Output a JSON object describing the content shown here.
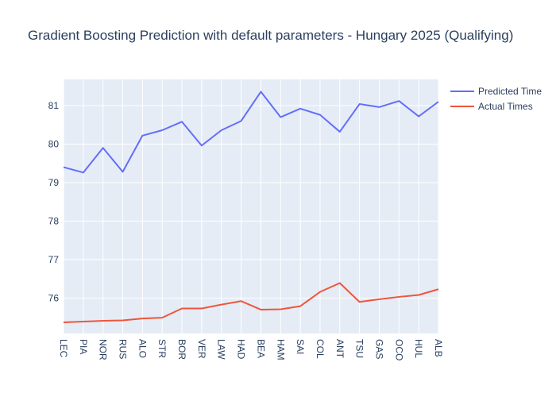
{
  "chart_data": {
    "type": "line",
    "title": "Gradient Boosting Prediction with default parameters - Hungary 2025 (Qualifying)",
    "xlabel": "",
    "ylabel": "",
    "categories": [
      "LEC",
      "PIA",
      "NOR",
      "RUS",
      "ALO",
      "STR",
      "BOR",
      "VER",
      "LAW",
      "HAD",
      "BEA",
      "HAM",
      "SAI",
      "COL",
      "ANT",
      "TSU",
      "GAS",
      "OCO",
      "HUL",
      "ALB"
    ],
    "ylim": [
      75.08,
      81.68
    ],
    "yticks": [
      76,
      77,
      78,
      79,
      80,
      81
    ],
    "grid": true,
    "legend_position": "top-right",
    "series": [
      {
        "name": "Predicted Time",
        "color": "#636efa",
        "values": [
          79.4,
          79.26,
          79.9,
          79.28,
          80.22,
          80.36,
          80.58,
          79.96,
          80.36,
          80.6,
          81.36,
          80.7,
          80.92,
          80.76,
          80.32,
          81.04,
          80.96,
          81.12,
          80.72,
          81.1
        ]
      },
      {
        "name": "Actual Times",
        "color": "#ef553b",
        "values": [
          75.37,
          75.39,
          75.41,
          75.42,
          75.47,
          75.49,
          75.73,
          75.73,
          75.83,
          75.92,
          75.7,
          75.71,
          75.79,
          76.16,
          76.39,
          75.9,
          75.97,
          76.03,
          76.08,
          76.23
        ]
      }
    ]
  },
  "colors": {
    "plot_background": "#e5ecf6",
    "grid": "#ffffff",
    "text": "#2a3f5f"
  }
}
